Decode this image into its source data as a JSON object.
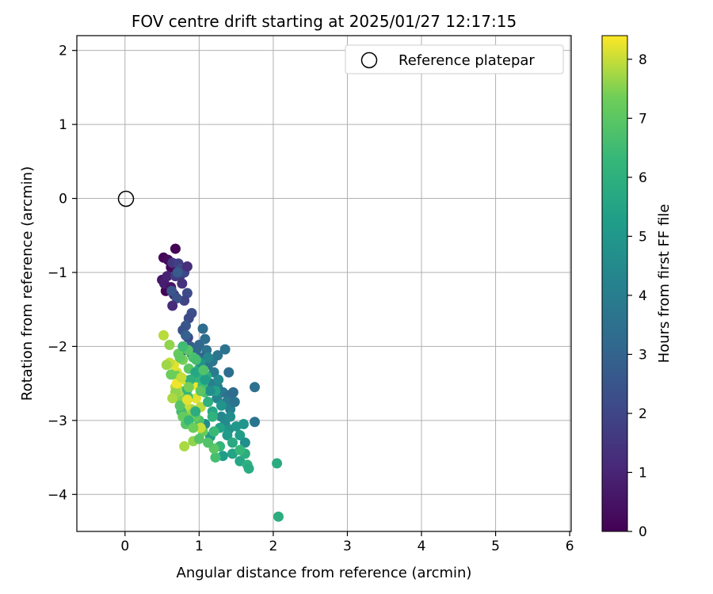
{
  "chart_data": {
    "type": "scatter",
    "title": "FOV centre drift starting at 2025/01/27 12:17:15",
    "xlabel": "Angular distance from reference (arcmin)",
    "ylabel": "Rotation from reference (arcmin)",
    "xlim": [
      -0.65,
      6.02
    ],
    "ylim": [
      -4.5,
      2.2
    ],
    "xticks": [
      0,
      1,
      2,
      3,
      4,
      5,
      6
    ],
    "yticks": [
      -4,
      -3,
      -2,
      -1,
      0,
      1,
      2
    ],
    "grid": true,
    "legend": {
      "placement": "top-right",
      "entries": [
        "Reference platepar"
      ]
    },
    "reference_point": {
      "x": 0,
      "y": 0
    },
    "colorbar": {
      "label": "Hours from first FF file",
      "range": [
        0,
        8.4
      ],
      "ticks": [
        0,
        1,
        2,
        3,
        4,
        5,
        6,
        7,
        8
      ],
      "colormap": "viridis"
    },
    "series": [
      {
        "points": [
          [
            0.68,
            -0.68,
            0.1
          ],
          [
            0.52,
            -0.8,
            0.15
          ],
          [
            0.58,
            -0.83,
            0.3
          ],
          [
            0.62,
            -0.93,
            0.2
          ],
          [
            0.55,
            -1.25,
            0.1
          ],
          [
            0.5,
            -1.1,
            0.6
          ],
          [
            0.53,
            -1.15,
            0.8
          ],
          [
            0.57,
            -1.05,
            0.9
          ],
          [
            0.62,
            -1.2,
            0.5
          ],
          [
            0.66,
            -1.3,
            1.0
          ],
          [
            0.64,
            -0.87,
            1.5
          ],
          [
            0.72,
            -0.88,
            1.8
          ],
          [
            0.75,
            -0.95,
            2.1
          ],
          [
            0.74,
            -1.05,
            1.6
          ],
          [
            0.8,
            -1.0,
            2.0
          ],
          [
            0.84,
            -0.92,
            1.3
          ],
          [
            0.68,
            -1.05,
            1.7
          ],
          [
            0.77,
            -1.15,
            1.4
          ],
          [
            0.84,
            -1.28,
            2.2
          ],
          [
            0.8,
            -1.38,
            1.9
          ],
          [
            0.63,
            -1.25,
            2.5
          ],
          [
            0.7,
            -1.35,
            2.4
          ],
          [
            0.64,
            -1.45,
            1.2
          ],
          [
            0.71,
            -1.0,
            2.7
          ],
          [
            0.9,
            -1.55,
            2.3
          ],
          [
            0.86,
            -1.62,
            2.2
          ],
          [
            0.82,
            -1.72,
            2.6
          ],
          [
            0.78,
            -1.78,
            2.4
          ],
          [
            0.85,
            -1.88,
            2.1
          ],
          [
            0.88,
            -2.0,
            2.8
          ],
          [
            0.8,
            -2.05,
            2.5
          ],
          [
            0.82,
            -1.85,
            2.9
          ],
          [
            0.9,
            -2.1,
            3.0
          ],
          [
            0.96,
            -2.05,
            3.2
          ],
          [
            1.0,
            -1.98,
            3.1
          ],
          [
            1.05,
            -1.76,
            3.3
          ],
          [
            1.08,
            -1.9,
            3.4
          ],
          [
            1.1,
            -2.05,
            3.6
          ],
          [
            1.05,
            -2.15,
            3.0
          ],
          [
            1.12,
            -2.25,
            3.5
          ],
          [
            1.18,
            -2.2,
            3.8
          ],
          [
            1.2,
            -2.35,
            3.9
          ],
          [
            1.25,
            -2.12,
            3.7
          ],
          [
            1.35,
            -2.04,
            3.6
          ],
          [
            1.4,
            -2.35,
            3.4
          ],
          [
            1.15,
            -2.5,
            4.0
          ],
          [
            1.25,
            -2.55,
            4.2
          ],
          [
            1.32,
            -2.62,
            3.8
          ],
          [
            1.4,
            -2.66,
            3.5
          ],
          [
            1.46,
            -2.62,
            3.3
          ],
          [
            1.37,
            -2.75,
            3.9
          ],
          [
            1.42,
            -2.85,
            4.1
          ],
          [
            1.3,
            -2.95,
            4.4
          ],
          [
            1.24,
            -2.7,
            4.3
          ],
          [
            1.48,
            -2.75,
            3.6
          ],
          [
            1.75,
            -2.55,
            3.5
          ],
          [
            1.75,
            -3.02,
            3.6
          ],
          [
            1.35,
            -3.05,
            4.5
          ],
          [
            1.4,
            -3.12,
            4.8
          ],
          [
            1.5,
            -3.08,
            5.0
          ],
          [
            1.55,
            -3.2,
            5.2
          ],
          [
            1.6,
            -3.05,
            4.9
          ],
          [
            1.62,
            -3.3,
            4.7
          ],
          [
            1.15,
            -3.22,
            5.1
          ],
          [
            1.08,
            -3.05,
            4.6
          ],
          [
            1.45,
            -3.45,
            5.5
          ],
          [
            1.55,
            -3.55,
            5.6
          ],
          [
            1.62,
            -3.45,
            5.9
          ],
          [
            1.65,
            -3.6,
            6.0
          ],
          [
            1.67,
            -3.65,
            5.8
          ],
          [
            2.05,
            -3.58,
            5.8
          ],
          [
            2.07,
            -4.3,
            5.9
          ],
          [
            1.32,
            -3.48,
            5.2
          ],
          [
            1.28,
            -3.35,
            6.2
          ],
          [
            1.22,
            -3.5,
            6.6
          ],
          [
            1.2,
            -3.38,
            7.0
          ],
          [
            1.12,
            -3.3,
            6.8
          ],
          [
            1.05,
            -3.15,
            7.2
          ],
          [
            1.0,
            -3.0,
            6.7
          ],
          [
            0.95,
            -2.95,
            7.1
          ],
          [
            0.88,
            -2.92,
            7.4
          ],
          [
            0.82,
            -3.05,
            6.9
          ],
          [
            0.8,
            -3.35,
            7.8
          ],
          [
            0.92,
            -3.28,
            7.6
          ],
          [
            1.02,
            -3.1,
            8.0
          ],
          [
            0.72,
            -2.7,
            7.5
          ],
          [
            0.75,
            -2.6,
            7.8
          ],
          [
            0.68,
            -2.55,
            7.9
          ],
          [
            0.7,
            -2.35,
            8.1
          ],
          [
            0.66,
            -2.25,
            8.2
          ],
          [
            0.62,
            -2.38,
            7.3
          ],
          [
            0.6,
            -2.22,
            8.0
          ],
          [
            0.56,
            -2.25,
            7.7
          ],
          [
            0.52,
            -1.85,
            7.9
          ],
          [
            0.6,
            -1.98,
            7.6
          ],
          [
            0.72,
            -2.1,
            7.2
          ],
          [
            0.78,
            -2.18,
            7.4
          ],
          [
            0.86,
            -2.3,
            7.0
          ],
          [
            0.8,
            -2.45,
            8.1
          ],
          [
            0.92,
            -2.52,
            8.3
          ],
          [
            0.96,
            -2.7,
            8.2
          ],
          [
            1.02,
            -2.82,
            7.9
          ],
          [
            0.9,
            -2.85,
            7.7
          ],
          [
            0.82,
            -2.8,
            8.0
          ],
          [
            0.76,
            -2.88,
            6.5
          ],
          [
            0.85,
            -2.68,
            6.8
          ],
          [
            0.98,
            -2.42,
            6.2
          ],
          [
            1.05,
            -2.52,
            6.4
          ],
          [
            1.08,
            -2.62,
            6.6
          ],
          [
            1.12,
            -2.75,
            6.0
          ],
          [
            1.18,
            -2.88,
            5.6
          ],
          [
            1.22,
            -2.6,
            5.4
          ],
          [
            1.18,
            -2.95,
            6.1
          ],
          [
            1.1,
            -2.4,
            5.9
          ],
          [
            1.0,
            -2.3,
            6.3
          ],
          [
            0.92,
            -2.15,
            6.7
          ],
          [
            0.85,
            -2.05,
            6.9
          ],
          [
            0.78,
            -2.0,
            6.5
          ],
          [
            0.74,
            -2.15,
            7.1
          ],
          [
            0.7,
            -2.4,
            7.3
          ],
          [
            0.68,
            -2.62,
            7.6
          ],
          [
            0.74,
            -2.8,
            6.9
          ],
          [
            0.78,
            -2.95,
            7.2
          ],
          [
            0.86,
            -3.0,
            6.3
          ],
          [
            0.95,
            -2.88,
            5.9
          ],
          [
            1.28,
            -3.1,
            5.4
          ],
          [
            1.38,
            -3.2,
            5.1
          ],
          [
            1.42,
            -2.95,
            4.6
          ],
          [
            1.3,
            -2.8,
            4.9
          ],
          [
            1.26,
            -2.45,
            4.5
          ],
          [
            1.15,
            -2.6,
            4.7
          ],
          [
            1.08,
            -2.45,
            5.3
          ],
          [
            1.12,
            -2.15,
            4.4
          ],
          [
            1.02,
            -2.22,
            4.8
          ],
          [
            0.95,
            -2.35,
            5.6
          ],
          [
            0.88,
            -2.45,
            6.0
          ],
          [
            0.84,
            -2.58,
            6.2
          ],
          [
            1.55,
            -3.4,
            6.3
          ],
          [
            1.45,
            -3.3,
            5.7
          ],
          [
            1.2,
            -3.15,
            6.4
          ],
          [
            1.0,
            -3.25,
            6.9
          ],
          [
            0.92,
            -3.1,
            7.3
          ],
          [
            0.64,
            -2.7,
            7.8
          ],
          [
            0.7,
            -2.5,
            8.3
          ],
          [
            0.76,
            -2.42,
            8.0
          ],
          [
            0.84,
            -2.72,
            8.2
          ],
          [
            0.86,
            -2.55,
            7.4
          ],
          [
            1.02,
            -2.6,
            7.0
          ],
          [
            1.06,
            -2.32,
            6.8
          ],
          [
            0.96,
            -2.18,
            6.6
          ]
        ]
      }
    ]
  }
}
